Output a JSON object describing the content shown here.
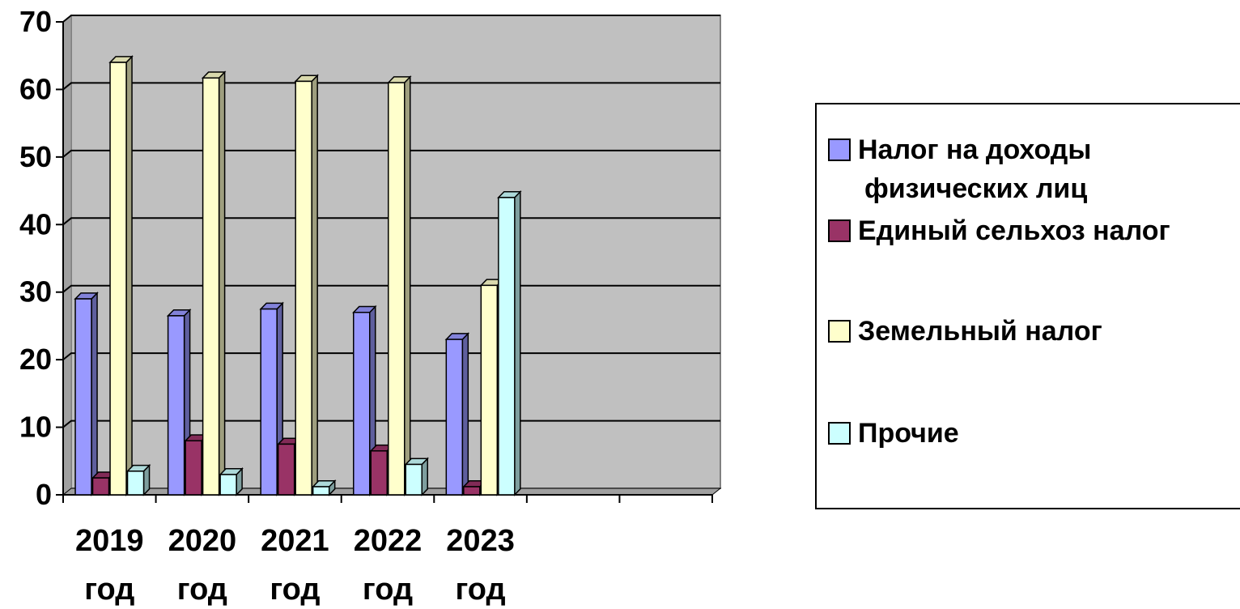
{
  "chart_data": {
    "type": "bar",
    "categories": [
      [
        "2019",
        "год"
      ],
      [
        "2020",
        "год"
      ],
      [
        "2021",
        "год"
      ],
      [
        "2022",
        "год"
      ],
      [
        "2023",
        "год"
      ],
      [
        "",
        ""
      ],
      [
        "",
        ""
      ]
    ],
    "ylim": [
      0,
      70
    ],
    "yticks": [
      "0",
      "10",
      "20",
      "30",
      "40",
      "50",
      "60",
      "70"
    ],
    "grid": true,
    "legend_position": "right",
    "series": [
      {
        "name": [
          "Налог на доходы",
          "физических лиц"
        ],
        "color": "#9999ff",
        "values": [
          29,
          26.5,
          27.5,
          27,
          23,
          null,
          null
        ]
      },
      {
        "name": [
          "Единый сельхоз налог"
        ],
        "color": "#993366",
        "values": [
          2.5,
          8,
          7.5,
          6.5,
          1.2,
          null,
          null
        ]
      },
      {
        "name": [
          "Земельный налог"
        ],
        "color": "#ffffcc",
        "values": [
          64,
          61.7,
          61.2,
          61,
          31,
          null,
          null
        ]
      },
      {
        "name": [
          "Прочие"
        ],
        "color": "#ccffff",
        "values": [
          3.5,
          3,
          1.2,
          4.5,
          44,
          null,
          null
        ]
      }
    ],
    "colors": {
      "plot_bg": "#c0c0c0",
      "grid": "#000000",
      "wall_floor": "#a0a0a0"
    }
  }
}
